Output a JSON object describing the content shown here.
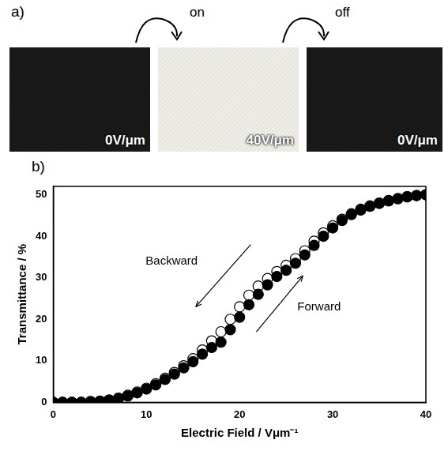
{
  "panel_a": {
    "label": "a)",
    "arrows": [
      "on",
      "off"
    ],
    "images": [
      "0V/μm",
      "40V/μm",
      "0V/μm"
    ]
  },
  "chart_data": {
    "type": "scatter",
    "panel_label": "b)",
    "x_label": "Electric Field / Vμm⁻¹",
    "y_label": "Transmittance / %",
    "annotations": [
      "Backward",
      "Forward"
    ],
    "x": [
      0,
      1,
      2,
      3,
      4,
      5,
      6,
      7,
      8,
      9,
      10,
      11,
      12,
      13,
      14,
      15,
      16,
      17,
      18,
      19,
      20,
      21,
      22,
      23,
      24,
      25,
      26,
      27,
      28,
      29,
      30,
      31,
      32,
      33,
      34,
      35,
      36,
      37,
      38,
      39,
      40
    ],
    "series": [
      {
        "name": "Forward",
        "color": "#000000",
        "marker": "filled_circle",
        "values": [
          0,
          0,
          0,
          0,
          0.1,
          0.2,
          0.5,
          0.9,
          1.5,
          2.3,
          3.2,
          4.2,
          5.5,
          6.8,
          8.3,
          9.8,
          11.6,
          13.2,
          14.5,
          17.5,
          20.5,
          23.5,
          26.0,
          28.3,
          30.3,
          31.8,
          33.5,
          35.5,
          37.8,
          40.0,
          42.0,
          43.8,
          45.2,
          46.3,
          47.2,
          47.9,
          48.5,
          49.0,
          49.5,
          49.8,
          50.0
        ]
      },
      {
        "name": "Backward",
        "color": "#000000",
        "marker": "open_circle",
        "values": [
          0,
          0,
          0,
          0,
          0.2,
          0.3,
          0.6,
          1.0,
          1.7,
          2.5,
          3.4,
          4.5,
          5.8,
          7.2,
          8.8,
          10.5,
          12.6,
          14.8,
          17.0,
          20.0,
          23.0,
          25.8,
          28.0,
          29.8,
          31.5,
          33.0,
          34.6,
          36.5,
          38.8,
          40.8,
          42.5,
          44.1,
          45.4,
          46.5,
          47.3,
          48.0,
          48.6,
          49.1,
          49.5,
          49.8,
          50.0
        ]
      }
    ],
    "xlim": [
      0,
      40
    ],
    "xticks": [
      0,
      10,
      20,
      30,
      40
    ],
    "ylim": [
      0,
      52
    ],
    "yticks": [
      0,
      10,
      20,
      30,
      40,
      50
    ],
    "grid": false
  }
}
